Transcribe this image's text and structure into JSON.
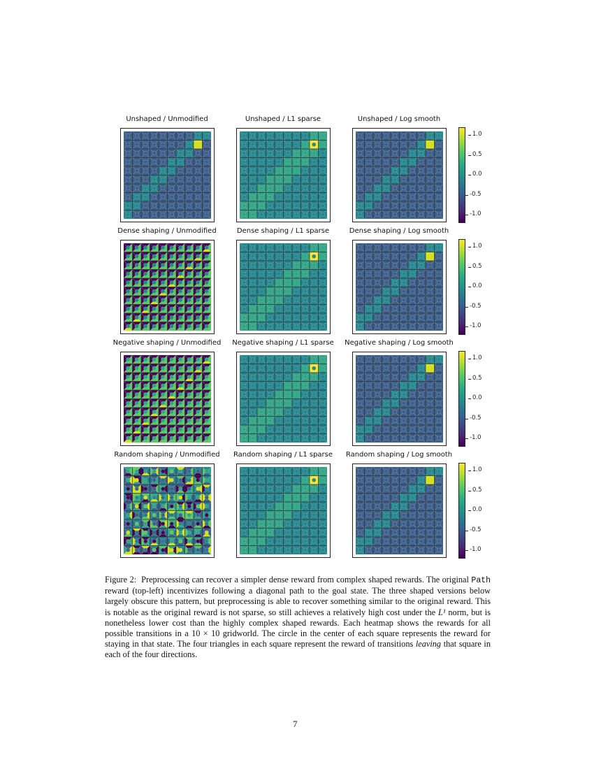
{
  "figure": {
    "rows": [
      "Unshaped",
      "Dense shaping",
      "Negative shaping",
      "Random shaping"
    ],
    "cols": [
      "Unmodified",
      "L1 sparse",
      "Log smooth"
    ],
    "panels": [
      {
        "title": "Unshaped / Unmodified",
        "style": "path-blocks"
      },
      {
        "title": "Unshaped / L1 sparse",
        "style": "l1"
      },
      {
        "title": "Unshaped / Log smooth",
        "style": "log"
      },
      {
        "title": "Dense shaping / Unmodified",
        "style": "dense"
      },
      {
        "title": "Dense shaping / L1 sparse",
        "style": "l1"
      },
      {
        "title": "Dense shaping / Log smooth",
        "style": "log"
      },
      {
        "title": "Negative shaping / Unmodified",
        "style": "negative"
      },
      {
        "title": "Negative shaping / L1 sparse",
        "style": "l1"
      },
      {
        "title": "Negative shaping / Log smooth",
        "style": "log"
      },
      {
        "title": "Random shaping / Unmodified",
        "style": "random"
      },
      {
        "title": "Random shaping / L1 sparse",
        "style": "l1"
      },
      {
        "title": "Random shaping / Log smooth",
        "style": "log"
      }
    ],
    "colorbar_ticks": [
      "1.0",
      "0.5",
      "0.0",
      "-0.5",
      "-1.0"
    ],
    "colormap": [
      "#440154",
      "#3b518b",
      "#21908d",
      "#5cc863",
      "#fde725"
    ]
  },
  "chart_data": {
    "type": "heatmap",
    "title": "Figure 2 reward heatmaps (10x10 gridworld)",
    "grid_size": [
      10,
      10
    ],
    "row_labels": [
      "Unshaped",
      "Dense shaping",
      "Negative shaping",
      "Random shaping"
    ],
    "col_labels": [
      "Unmodified",
      "L1 sparse",
      "Log smooth"
    ],
    "colorbar_range": [
      -1.2,
      1.2
    ],
    "colorbar_ticks": [
      1.0,
      0.5,
      0.0,
      -0.5,
      -1.0
    ],
    "goal_cell": [
      1,
      8
    ],
    "notes": "Each cell: center circle = stay reward; four triangles = leaving rewards in four directions. Diagonal path from bottom-left to goal at top-right."
  },
  "caption": {
    "label": "Figure 2:",
    "s1": "Preprocessing can recover a simpler dense reward from complex shaped rewards. The original",
    "code": "Path",
    "s2": "reward (top-left) incentivizes following a diagonal path to the goal state. The three shaped versions below largely obscure this pattern, but preprocessing is able to recover something similar to the original reward. This is notable as the original reward is not sparse, so still achieves a relatively high cost under the",
    "norm": "L¹",
    "s3": "norm, but is nonetheless lower cost than the highly complex shaped rewards. Each heatmap shows the rewards for all possible transitions in a 10 × 10 gridworld. The circle in the center of each square represents the reward for staying in that state. The four triangles in each square represent the reward of transitions",
    "em": "leaving",
    "s4": "that square in each of the four directions."
  },
  "page_number": "7"
}
